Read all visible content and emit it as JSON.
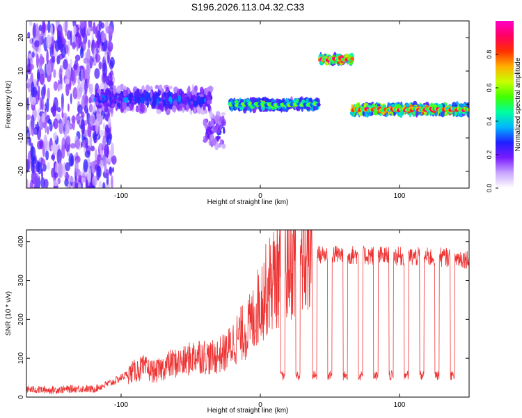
{
  "figure_title": "S196.2026.113.04.32.C33",
  "chart_data": [
    {
      "type": "heatmap",
      "title": "S196.2026.113.04.32.C33",
      "xlabel": "Height of straight line (km)",
      "ylabel": "Frequency (Hz)",
      "xlim": [
        -168,
        150
      ],
      "ylim": [
        -25,
        25
      ],
      "x_ticks": [
        -100,
        0,
        100
      ],
      "y_ticks": [
        -20,
        -10,
        0,
        10,
        20
      ],
      "colorbar": {
        "label": "Normalized spectral amplitude",
        "range": [
          0,
          1
        ],
        "ticks": [
          0.0,
          0.2,
          0.4,
          0.6,
          0.8
        ],
        "colormap": "rainbow-white",
        "colors": [
          "#ffffff",
          "#c9a6ff",
          "#7a1cff",
          "#2020ff",
          "#00b4ff",
          "#00ffa0",
          "#40ff00",
          "#c8ff00",
          "#ffb000",
          "#ff3000",
          "#ff0060",
          "#ff00c8"
        ]
      },
      "segments": [
        {
          "x_start": -168,
          "x_end": -105,
          "freq_center": 0,
          "freq_spread": 25,
          "amplitude": 0.12,
          "note": "noise"
        },
        {
          "x_start": -118,
          "x_end": -35,
          "freq_center": 1.5,
          "freq_spread": 4,
          "amplitude": 0.3
        },
        {
          "x_start": -40,
          "x_end": -26,
          "freq_center": -8,
          "freq_spread": 6,
          "amplitude": 0.25
        },
        {
          "x_start": -22,
          "x_end": 42,
          "freq_center": 0,
          "freq_spread": 1.5,
          "amplitude": 0.55
        },
        {
          "x_start": 43,
          "x_end": 66,
          "freq_center": 13.5,
          "freq_spread": 1.2,
          "amplitude": 0.9
        },
        {
          "x_start": 66,
          "x_end": 150,
          "freq_center": -1.5,
          "freq_spread": 1.5,
          "amplitude": 0.85
        }
      ]
    },
    {
      "type": "line",
      "xlabel": "Height of straight line (km)",
      "ylabel": "SNR (10 * v/v)",
      "xlim": [
        -168,
        150
      ],
      "ylim": [
        0,
        430
      ],
      "x_ticks": [
        -100,
        0,
        100
      ],
      "y_ticks": [
        0,
        100,
        200,
        300,
        400
      ],
      "series": [
        {
          "name": "SNR",
          "color": "#ee3333",
          "x": [
            -168,
            -150,
            -130,
            -120,
            -105,
            -95,
            -85,
            -75,
            -65,
            -55,
            -45,
            -35,
            -25,
            -15,
            -10,
            -5,
            0,
            5,
            10,
            15,
            20,
            25,
            30,
            40,
            50,
            60,
            70,
            80,
            90,
            100,
            110,
            120,
            130,
            140,
            150
          ],
          "values": [
            20,
            18,
            22,
            20,
            40,
            60,
            75,
            65,
            85,
            90,
            110,
            100,
            115,
            160,
            170,
            200,
            250,
            280,
            310,
            320,
            340,
            355,
            360,
            365,
            368,
            366,
            365,
            364,
            363,
            362,
            361,
            360,
            360,
            358,
            355
          ]
        }
      ],
      "dropouts_x": [
        16,
        27,
        39,
        50,
        61,
        72,
        83,
        94,
        105,
        116,
        127,
        138
      ],
      "dropout_level": 50
    }
  ]
}
